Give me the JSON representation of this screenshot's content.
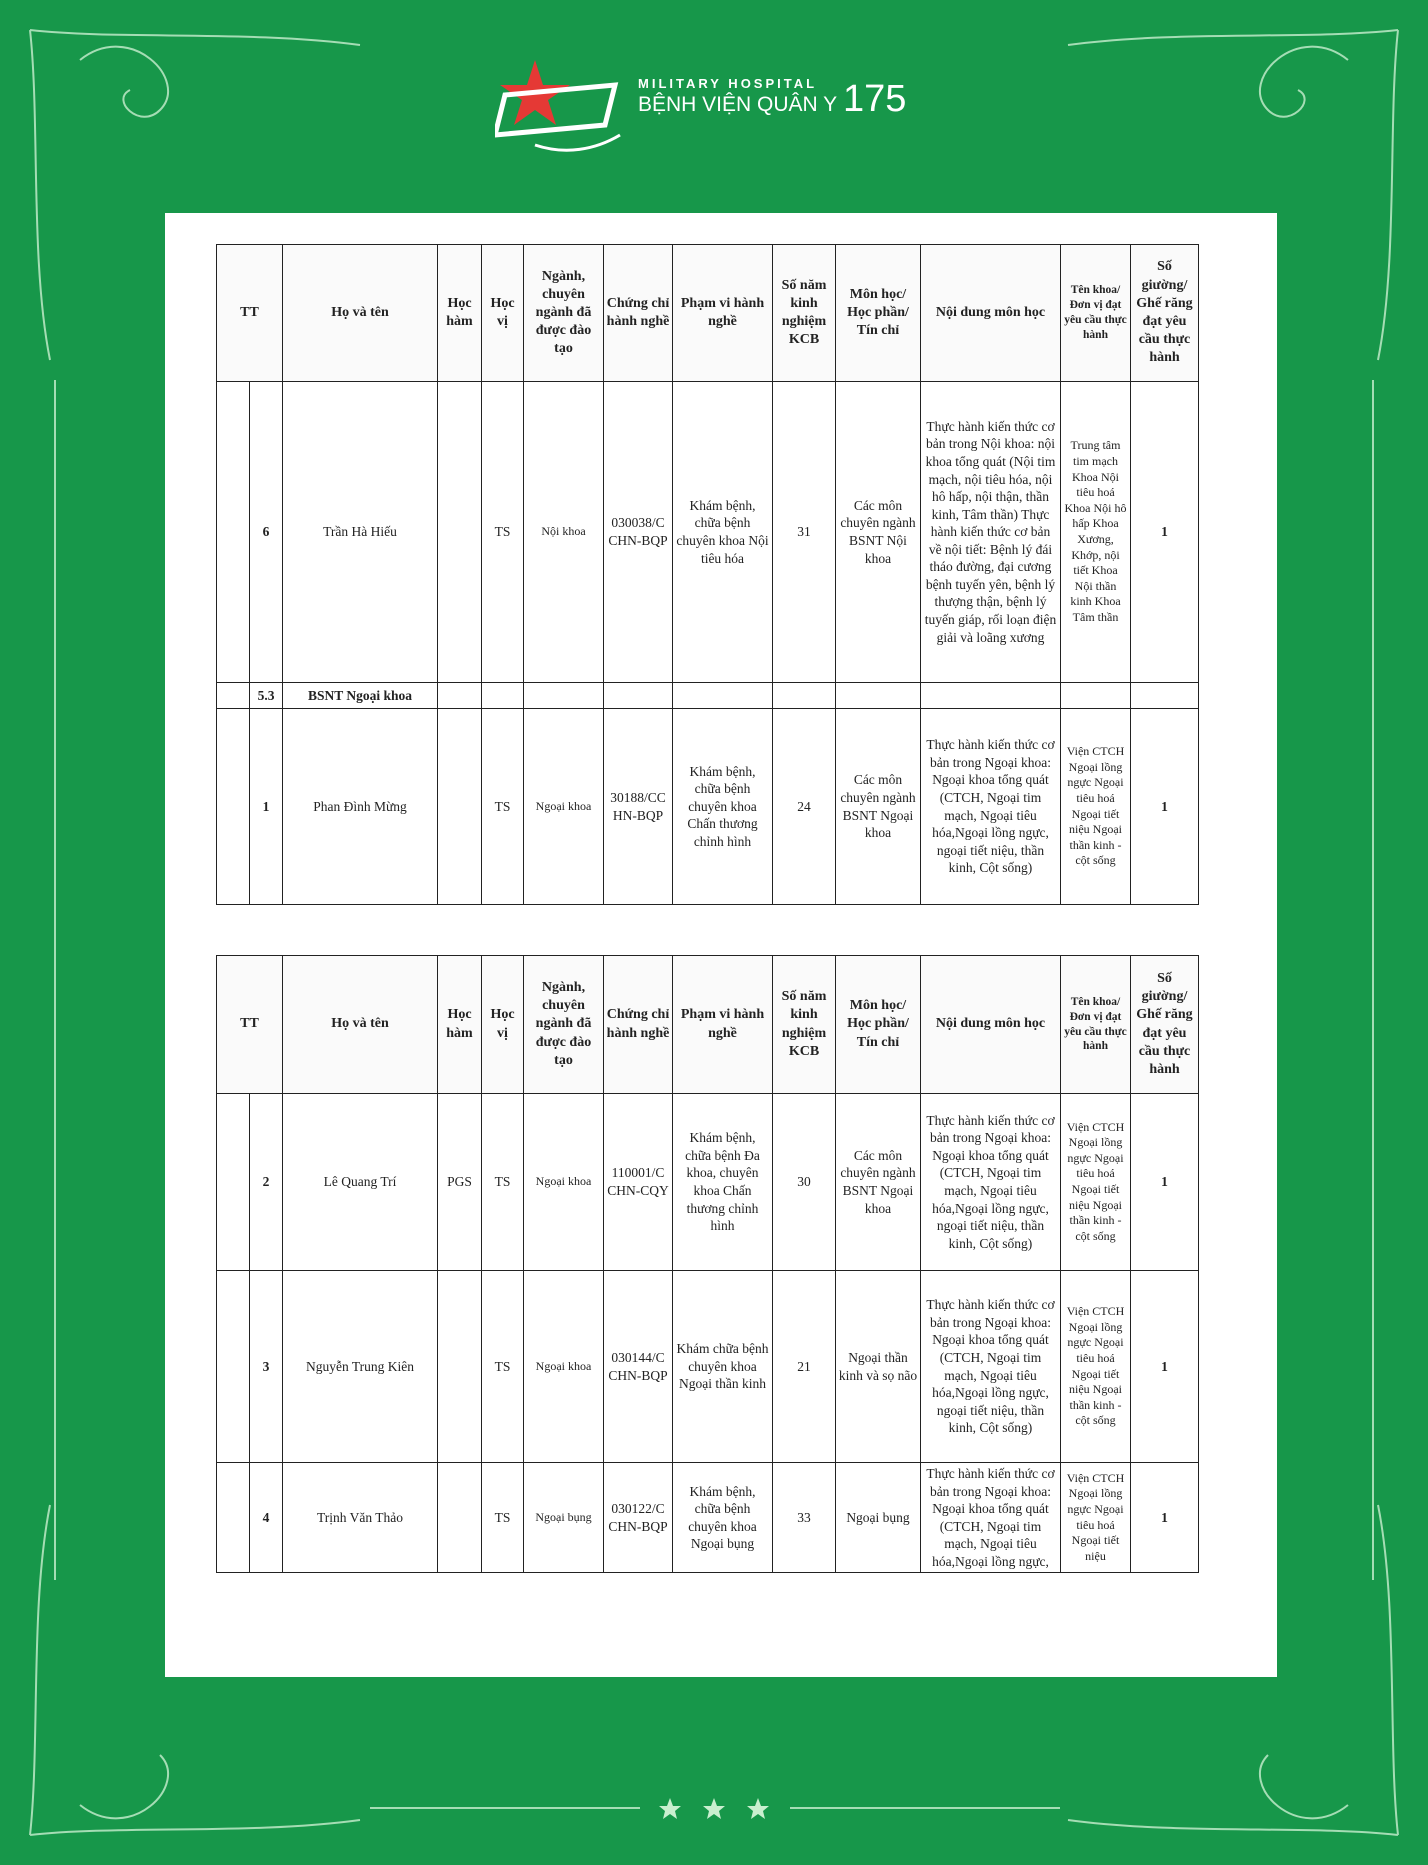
{
  "header": {
    "brand_en": "MILITARY HOSPITAL",
    "brand_vi": "BỆNH VIỆN QUÂN Y",
    "brand_no": "175"
  },
  "columns": [
    "TT",
    "Họ và tên",
    "Học hàm",
    "Học vị",
    "Ngành, chuyên ngành đã được đào tạo",
    "Chứng chỉ hành nghề",
    "Phạm vi hành nghề",
    "Số năm kinh nghiệm KCB",
    "Môn học/ Học phần/ Tín chỉ",
    "Nội dung môn học",
    "Tên khoa/ Đơn vị đạt yêu cầu thực hành",
    "Số giường/ Ghế răng đạt yêu cầu thực hành"
  ],
  "tables": [
    {
      "rows": [
        {
          "tt": "6",
          "name": "Trần Hà Hiếu",
          "hv": "TS",
          "nganh": "Nội khoa",
          "cc": "030038/C CHN-BQP",
          "pv": "Khám bệnh, chữa bệnh chuyên khoa Nội tiêu hóa",
          "sn": "31",
          "mh": "Các môn chuyên ngành BSNT Nội khoa",
          "nd": "Thực hành kiến thức cơ bản trong Nội khoa: nội khoa tổng quát (Nội tim mạch, nội tiêu hóa, nội hô hấp, nội thận, thần kinh, Tâm thần) Thực hành kiến thức cơ bản về nội tiết: Bệnh lý đái tháo đường, đại cương bệnh tuyến yên, bệnh lý thượng thận, bệnh lý tuyến giáp, rối loạn điện giải và loãng xương",
          "khoa": "Trung tâm tim mạch Khoa Nội tiêu hoá Khoa Nội hô hấp Khoa Xương, Khớp, nội tiết Khoa Nội thần kinh Khoa Tâm thần",
          "sg": "1"
        },
        {
          "section_no": "5.3",
          "section": "BSNT Ngoại khoa"
        },
        {
          "tt": "1",
          "name": "Phan Đình Mừng",
          "hv": "TS",
          "nganh": "Ngoại khoa",
          "cc": "30188/CC HN-BQP",
          "pv": "Khám bệnh, chữa bệnh chuyên khoa Chấn thương chỉnh hình",
          "sn": "24",
          "mh": "Các môn chuyên ngành BSNT Ngoại khoa",
          "nd": "Thực hành kiến thức cơ bản trong Ngoại khoa: Ngoại khoa tổng quát (CTCH, Ngoại tim mạch, Ngoại tiêu hóa,Ngoại lồng ngực, ngoại tiết niệu, thần kinh, Cột sống)",
          "khoa": "Viện CTCH Ngoại lồng ngực Ngoại tiêu hoá Ngoại tiết niệu Ngoại thần kinh - cột sống",
          "sg": "1"
        }
      ]
    },
    {
      "rows": [
        {
          "tt": "2",
          "name": "Lê Quang Trí",
          "hh": "PGS",
          "hv": "TS",
          "nganh": "Ngoại khoa",
          "cc": "110001/C CHN-CQY",
          "pv": "Khám bệnh, chữa bệnh Đa khoa, chuyên khoa Chấn thương chỉnh hình",
          "sn": "30",
          "mh": "Các môn chuyên ngành BSNT Ngoại khoa",
          "nd": "Thực hành kiến thức cơ bản trong Ngoại khoa: Ngoại khoa tổng quát (CTCH, Ngoại tim mạch, Ngoại tiêu hóa,Ngoại lồng ngực, ngoại tiết niệu, thần kinh, Cột sống)",
          "khoa": "Viện CTCH Ngoại lồng ngực Ngoại tiêu hoá Ngoại tiết niệu Ngoại thần kinh - cột sống",
          "sg": "1"
        },
        {
          "tt": "3",
          "name": "Nguyễn Trung Kiên",
          "hv": "TS",
          "nganh": "Ngoại khoa",
          "cc": "030144/C CHN-BQP",
          "pv": "Khám chữa bệnh chuyên khoa Ngoại thần kinh",
          "sn": "21",
          "mh": "Ngoại thần kinh và sọ não",
          "nd": "Thực hành kiến thức cơ bản trong Ngoại khoa: Ngoại khoa tổng quát (CTCH, Ngoại tim mạch, Ngoại tiêu hóa,Ngoại lồng ngực, ngoại tiết niệu, thần kinh, Cột sống)",
          "khoa": "Viện CTCH Ngoại lồng ngực Ngoại tiêu hoá Ngoại tiết niệu Ngoại thần kinh - cột sống",
          "sg": "1"
        },
        {
          "tt": "4",
          "name": "Trịnh Văn Thảo",
          "hv": "TS",
          "nganh": "Ngoại bụng",
          "cc": "030122/C CHN-BQP",
          "pv": "Khám bệnh, chữa bệnh chuyên khoa Ngoại bụng",
          "sn": "33",
          "mh": "Ngoại bụng",
          "nd": "Thực hành kiến thức cơ bản trong Ngoại khoa: Ngoại khoa tổng quát (CTCH, Ngoại tim mạch, Ngoại tiêu hóa,Ngoại lồng ngực,",
          "khoa": "Viện CTCH Ngoại lồng ngực Ngoại tiêu hoá Ngoại tiết niệu",
          "sg": "1"
        }
      ]
    }
  ]
}
